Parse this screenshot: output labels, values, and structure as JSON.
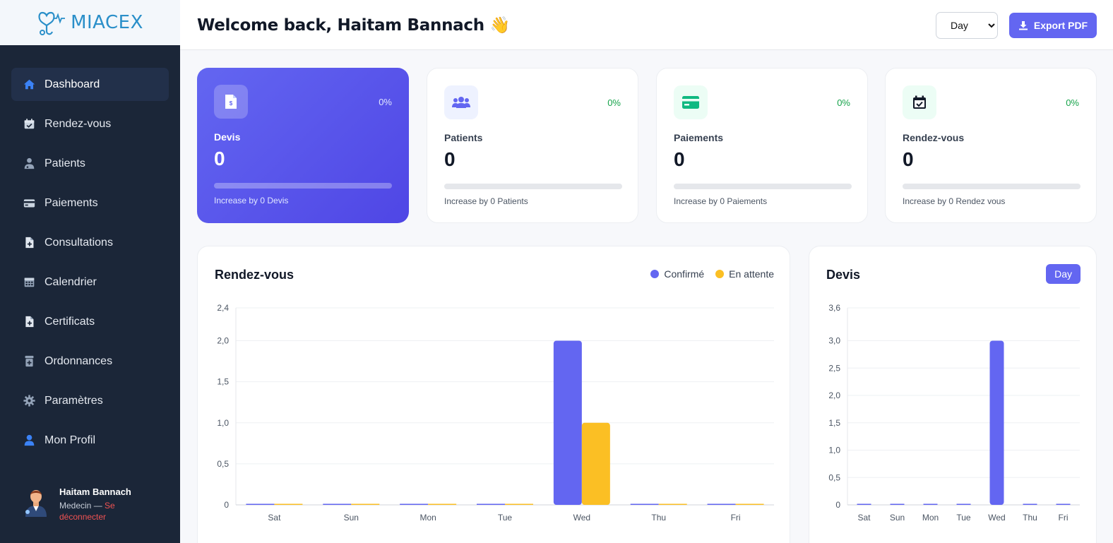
{
  "brand": {
    "name": "MIACEX"
  },
  "sidebar": {
    "items": [
      {
        "label": "Dashboard",
        "icon": "home-icon",
        "active": true
      },
      {
        "label": "Rendez-vous",
        "icon": "calendar-check-icon"
      },
      {
        "label": "Patients",
        "icon": "doctor-icon"
      },
      {
        "label": "Paiements",
        "icon": "credit-card-icon"
      },
      {
        "label": "Consultations",
        "icon": "file-plus-icon"
      },
      {
        "label": "Calendrier",
        "icon": "calendar-grid-icon"
      },
      {
        "label": "Certificats",
        "icon": "file-plus-icon"
      },
      {
        "label": "Ordonnances",
        "icon": "prescription-icon"
      },
      {
        "label": "Paramètres",
        "icon": "gear-icon"
      },
      {
        "label": "Mon Profil",
        "icon": "user-icon"
      }
    ]
  },
  "user": {
    "name": "Haitam Bannach",
    "role": "Medecin — ",
    "logout": "Se déconnecter"
  },
  "header": {
    "welcome": "Welcome back, Haitam Bannach 👋",
    "period_value": "Day",
    "export_label": "Export PDF"
  },
  "stats": [
    {
      "label": "Devis",
      "value": "0",
      "pct": "0%",
      "footer": "Increase by 0 Devis",
      "progress": 0,
      "icon": "invoice-icon"
    },
    {
      "label": "Patients",
      "value": "0",
      "pct": "0%",
      "footer": "Increase by 0 Patients",
      "progress": 0,
      "icon": "users-icon"
    },
    {
      "label": "Paiements",
      "value": "0",
      "pct": "0%",
      "footer": "Increase by 0 Paiements",
      "progress": 0,
      "icon": "credit-card-icon"
    },
    {
      "label": "Rendez-vous",
      "value": "0",
      "pct": "0%",
      "footer": "Increase by 0 Rendez vous",
      "progress": 0,
      "icon": "calendar-check-icon"
    }
  ],
  "colors": {
    "primary": "#6366f1",
    "pending": "#fbbf24",
    "sidebar_bg": "#1b2638",
    "success": "#16a34a"
  },
  "chart_data": [
    {
      "type": "bar",
      "title": "Rendez-vous",
      "categories": [
        "Sat",
        "Sun",
        "Mon",
        "Tue",
        "Wed",
        "Thu",
        "Fri"
      ],
      "series": [
        {
          "name": "Confirmé",
          "values": [
            0,
            0,
            0,
            0,
            2,
            0,
            0
          ],
          "color": "#6366f1"
        },
        {
          "name": "En attente",
          "values": [
            0,
            0,
            0,
            0,
            1,
            0,
            0
          ],
          "color": "#fbbf24"
        }
      ],
      "yticks": [
        "0",
        "0,5",
        "1,0",
        "1,5",
        "2,0",
        "2,4"
      ],
      "ylim": [
        0,
        2.4
      ],
      "legend": "top-right",
      "grid": true
    },
    {
      "type": "bar",
      "title": "Devis",
      "categories": [
        "Sat",
        "Sun",
        "Mon",
        "Tue",
        "Wed",
        "Thu",
        "Fri"
      ],
      "series": [
        {
          "values": [
            0,
            0,
            0,
            0,
            3,
            0,
            0
          ],
          "color": "#6366f1"
        }
      ],
      "yticks": [
        "0",
        "0,5",
        "1,0",
        "1,5",
        "2,0",
        "2,5",
        "3,0",
        "3,6"
      ],
      "ylim": [
        0,
        3.6
      ],
      "badge": "Day",
      "grid": true
    }
  ]
}
